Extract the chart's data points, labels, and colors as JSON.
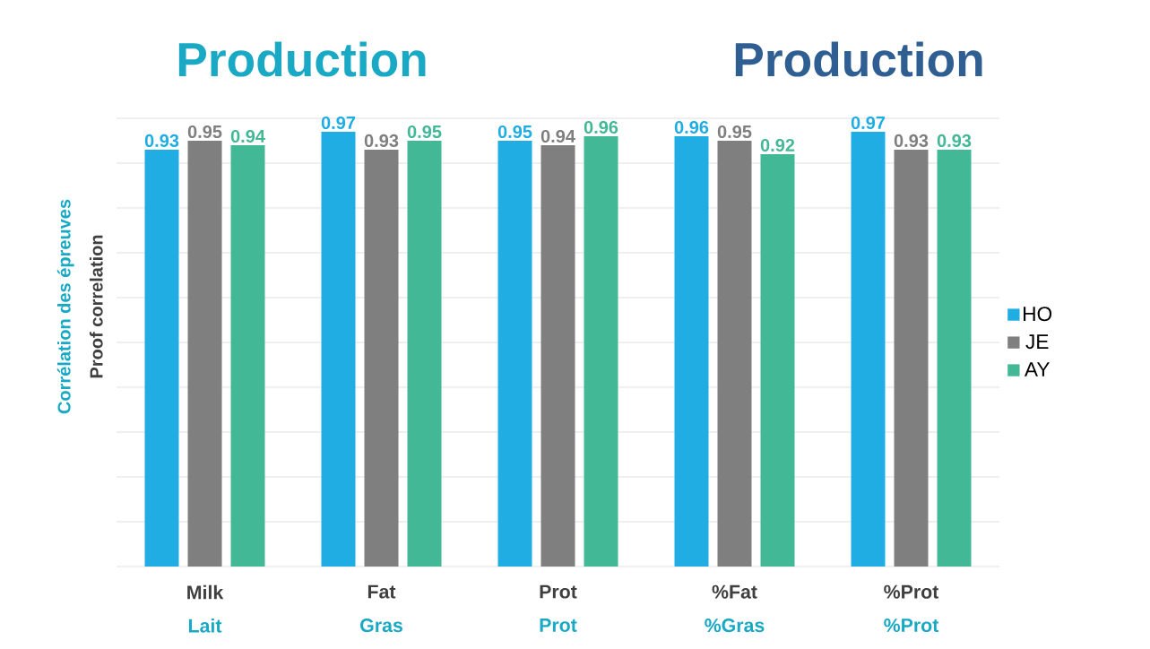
{
  "chart_data": {
    "type": "bar",
    "title": "Production",
    "subtitle": "Production",
    "ylabel": "Corrélation des épreuves",
    "categories": [
      "Milk",
      "Fat",
      "Prot",
      "%Fat",
      "%Prot"
    ],
    "series": [
      {
        "name": "HO",
        "color": "#1fade3",
        "values": [
          0.93,
          0.97,
          0.95,
          0.96,
          0.97
        ]
      },
      {
        "name": "JE",
        "color": "#7f7f7f",
        "values": [
          0.95,
          0.93,
          0.94,
          0.95,
          0.93
        ]
      },
      {
        "name": "AY",
        "color": "#43b897",
        "values": [
          0.94,
          0.95,
          0.96,
          0.92,
          0.93
        ]
      }
    ],
    "annotations": [
      "Lait",
      "Gras",
      "Prot",
      "%Gras",
      "%Prot",
      "Proof correlation"
    ],
    "ylim": [
      0,
      1
    ],
    "yticks": [
      {
        "value": 0,
        "label": null
      },
      {
        "value": 0.1,
        "label": null
      },
      {
        "value": 0.2,
        "label": null
      },
      {
        "value": 0.3,
        "label": null
      },
      {
        "value": 0.4,
        "label": null
      },
      {
        "value": 0.5,
        "label": null
      },
      {
        "value": 0.6,
        "label": null
      },
      {
        "value": 0.7,
        "label": null
      },
      {
        "value": 0.8,
        "label": null
      },
      {
        "value": 0.9,
        "label": null
      },
      {
        "value": 1,
        "label": null
      }
    ],
    "grid": "y",
    "legend": "right",
    "tick_labels": "x",
    "data_labels": true
  }
}
